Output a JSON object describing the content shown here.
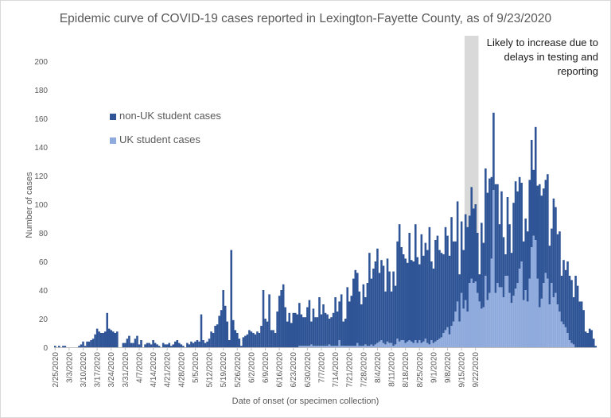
{
  "chart_data": {
    "type": "bar",
    "stacked": true,
    "title": "Epidemic curve of COVID-19 cases reported in Lexington-Fayette County, as of 9/23/2020",
    "xlabel": "Date of onset (or specimen collection)",
    "ylabel": "Number of cases",
    "ylim": [
      0,
      200
    ],
    "yticks": [
      0,
      20,
      40,
      60,
      80,
      100,
      120,
      140,
      160,
      180,
      200
    ],
    "grid": false,
    "legend_position": "upper-left",
    "start_date": "2/25/2020",
    "tick_labels": [
      "2/25/2020",
      "3/3/2020",
      "3/10/2020",
      "3/17/2020",
      "3/24/2020",
      "3/31/2020",
      "4/7/2020",
      "4/14/2020",
      "4/21/2020",
      "4/28/2020",
      "5/5/2020",
      "5/12/2020",
      "5/19/2020",
      "5/26/2020",
      "6/2/2020",
      "6/9/2020",
      "6/16/2020",
      "6/23/2020",
      "6/30/2020",
      "7/7/2020",
      "7/14/2020",
      "7/21/2020",
      "7/28/2020",
      "8/4/2020",
      "8/11/2020",
      "8/18/2020",
      "8/25/2020",
      "9/1/2020",
      "9/8/2020",
      "9/15/2020",
      "9/22/2020"
    ],
    "annotation": {
      "text": "Likely to increase due to delays in testing and reporting",
      "range": [
        "9/17/2020",
        "9/23/2020"
      ]
    },
    "series": [
      {
        "name": "non-UK student cases",
        "color": "#2f5597",
        "values": [
          1,
          0,
          1,
          0,
          1,
          1,
          0,
          0,
          0,
          0,
          0,
          0,
          1,
          2,
          4,
          1,
          4,
          4,
          5,
          6,
          9,
          13,
          11,
          10,
          10,
          11,
          24,
          13,
          12,
          11,
          10,
          11,
          0,
          0,
          3,
          3,
          6,
          8,
          3,
          3,
          6,
          8,
          2,
          5,
          0,
          2,
          3,
          3,
          2,
          5,
          3,
          2,
          1,
          0,
          3,
          2,
          2,
          3,
          1,
          2,
          4,
          5,
          3,
          2,
          1,
          0,
          3,
          2,
          4,
          3,
          4,
          5,
          4,
          23,
          5,
          3,
          4,
          6,
          11,
          10,
          15,
          16,
          22,
          26,
          40,
          29,
          18,
          5,
          68,
          19,
          12,
          10,
          6,
          1,
          7,
          8,
          9,
          12,
          11,
          10,
          9,
          11,
          10,
          15,
          40,
          20,
          18,
          37,
          12,
          12,
          10,
          25,
          36,
          40,
          44,
          28,
          18,
          24,
          17,
          24,
          24,
          23,
          30,
          22,
          20,
          20,
          27,
          32,
          16,
          26,
          20,
          20,
          34,
          22,
          29,
          23,
          22,
          18,
          20,
          23,
          34,
          24,
          27,
          36,
          17,
          19,
          41,
          31,
          35,
          47,
          53,
          49,
          38,
          29,
          43,
          33,
          44,
          65,
          46,
          54,
          58,
          66,
          48,
          56,
          54,
          37,
          58,
          50,
          36,
          52,
          41,
          68,
          82,
          65,
          60,
          59,
          55,
          75,
          57,
          57,
          81,
          60,
          53,
          76,
          60,
          67,
          65,
          82,
          55,
          52,
          71,
          73,
          62,
          59,
          55,
          72,
          64,
          55,
          76,
          56,
          49,
          70,
          33,
          50,
          41,
          60,
          59,
          47,
          64,
          52,
          54,
          42,
          19,
          60,
          45,
          75,
          75,
          80,
          57,
          54,
          76,
          69,
          44,
          67,
          42,
          15,
          55,
          48,
          35,
          65,
          75,
          64,
          64,
          55,
          41,
          50,
          49,
          69,
          75,
          46,
          79,
          65,
          86,
          72,
          66,
          65,
          73,
          41,
          38,
          69,
          60,
          49,
          56,
          32,
          45,
          40,
          50,
          45,
          44,
          33,
          50,
          43,
          32,
          32,
          26,
          11,
          10,
          13,
          12,
          6,
          1
        ]
      },
      {
        "name": "UK student cases",
        "color": "#8faadc",
        "values": [
          0,
          0,
          0,
          0,
          0,
          0,
          0,
          0,
          0,
          0,
          0,
          0,
          0,
          0,
          0,
          0,
          0,
          0,
          0,
          0,
          0,
          0,
          0,
          0,
          0,
          0,
          0,
          0,
          0,
          0,
          0,
          0,
          0,
          0,
          0,
          0,
          0,
          0,
          0,
          0,
          0,
          0,
          0,
          0,
          0,
          0,
          0,
          0,
          0,
          0,
          0,
          0,
          0,
          0,
          0,
          0,
          0,
          0,
          0,
          0,
          0,
          0,
          0,
          0,
          0,
          0,
          0,
          0,
          0,
          0,
          0,
          0,
          0,
          0,
          0,
          0,
          0,
          0,
          0,
          0,
          0,
          0,
          0,
          0,
          0,
          0,
          0,
          0,
          0,
          0,
          0,
          0,
          0,
          0,
          0,
          0,
          0,
          0,
          0,
          0,
          0,
          0,
          0,
          0,
          0,
          0,
          0,
          0,
          0,
          0,
          0,
          0,
          0,
          0,
          0,
          0,
          0,
          0,
          0,
          0,
          0,
          0,
          1,
          1,
          1,
          1,
          1,
          1,
          2,
          1,
          1,
          1,
          1,
          1,
          1,
          1,
          1,
          2,
          1,
          1,
          1,
          1,
          5,
          1,
          1,
          1,
          1,
          1,
          1,
          1,
          1,
          3,
          1,
          1,
          1,
          2,
          1,
          1,
          2,
          1,
          2,
          3,
          4,
          5,
          3,
          2,
          4,
          3,
          3,
          1,
          2,
          6,
          4,
          5,
          5,
          3,
          4,
          5,
          4,
          3,
          5,
          3,
          5,
          3,
          4,
          6,
          3,
          2,
          5,
          3,
          4,
          5,
          6,
          7,
          10,
          12,
          14,
          9,
          15,
          18,
          25,
          32,
          18,
          38,
          27,
          33,
          25,
          45,
          48,
          45,
          46,
          38,
          32,
          27,
          28,
          50,
          33,
          38,
          62,
          110,
          38,
          45,
          42,
          42,
          35,
          50,
          50,
          38,
          31,
          36,
          41,
          45,
          55,
          60,
          33,
          40,
          32,
          48,
          70,
          78,
          75,
          48,
          28,
          34,
          45,
          52,
          48,
          30,
          45,
          35,
          38,
          30,
          25,
          18,
          16,
          14,
          10,
          5,
          3,
          2
        ]
      }
    ]
  }
}
